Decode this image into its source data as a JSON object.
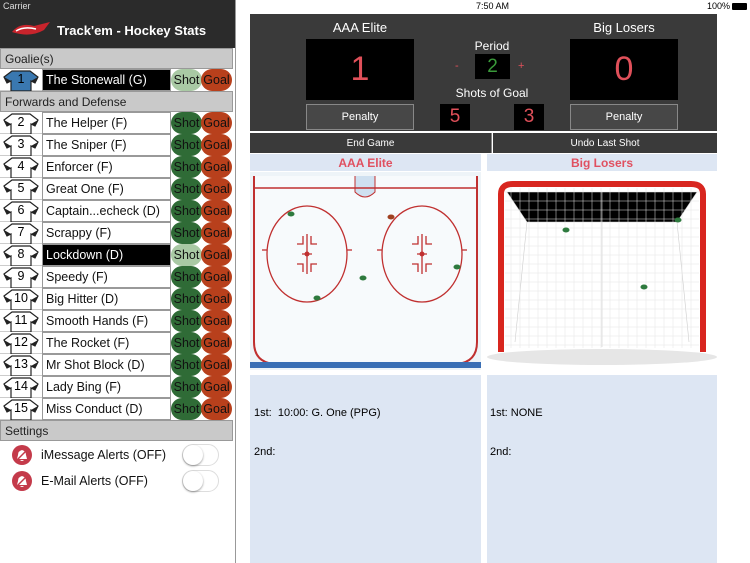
{
  "status_bar": {
    "carrier": "Carrier",
    "time": "7:50 AM",
    "battery": "100%"
  },
  "sidebar": {
    "app_title": "Track'em - Hockey Stats",
    "buttons": {
      "shot": "Shot",
      "goal": "Goal"
    },
    "sections": [
      {
        "title": "Goalie(s)",
        "players": [
          {
            "number": 1,
            "name": "The Stonewall (G)",
            "selected": true
          }
        ]
      },
      {
        "title": "Forwards and Defense",
        "players": [
          {
            "number": 2,
            "name": "The Helper (F)",
            "selected": false
          },
          {
            "number": 3,
            "name": "The Sniper (F)",
            "selected": false
          },
          {
            "number": 4,
            "name": "Enforcer (F)",
            "selected": false
          },
          {
            "number": 5,
            "name": "Great One (F)",
            "selected": false
          },
          {
            "number": 6,
            "name": "Captain...echeck (D)",
            "selected": false
          },
          {
            "number": 7,
            "name": "Scrappy (F)",
            "selected": false
          },
          {
            "number": 8,
            "name": "Lockdown (D)",
            "selected": true
          },
          {
            "number": 9,
            "name": "Speedy (F)",
            "selected": false
          },
          {
            "number": 10,
            "name": "Big Hitter (D)",
            "selected": false
          },
          {
            "number": 11,
            "name": "Smooth Hands (F)",
            "selected": false
          },
          {
            "number": 12,
            "name": "The Rocket (F)",
            "selected": false
          },
          {
            "number": 13,
            "name": "Mr Shot Block (D)",
            "selected": false
          },
          {
            "number": 14,
            "name": "Lady Bing (F)",
            "selected": false
          },
          {
            "number": 15,
            "name": "Miss Conduct (D)",
            "selected": false
          }
        ]
      }
    ],
    "settings": {
      "title": "Settings",
      "items": [
        "iMessage Alerts (OFF)",
        "E-Mail Alerts (OFF)"
      ]
    }
  },
  "scoreboard": {
    "home": {
      "name": "AAA Elite",
      "score": 1,
      "shots": 5,
      "penalty": "Penalty"
    },
    "away": {
      "name": "Big Losers",
      "score": 0,
      "shots": 3,
      "penalty": "Penalty"
    },
    "period_label": "Period",
    "period": 2,
    "minus": "-",
    "plus": "+",
    "shots_label": "Shots of Goal",
    "end_game": "End Game",
    "undo": "Undo Last Shot"
  },
  "panels": [
    {
      "title": "AAA Elite",
      "log": [
        "1st:  10:00: G. One (PPG)",
        "2nd:"
      ]
    },
    {
      "title": "Big Losers",
      "log": [
        "1st: NONE",
        "2nd:"
      ]
    }
  ]
}
